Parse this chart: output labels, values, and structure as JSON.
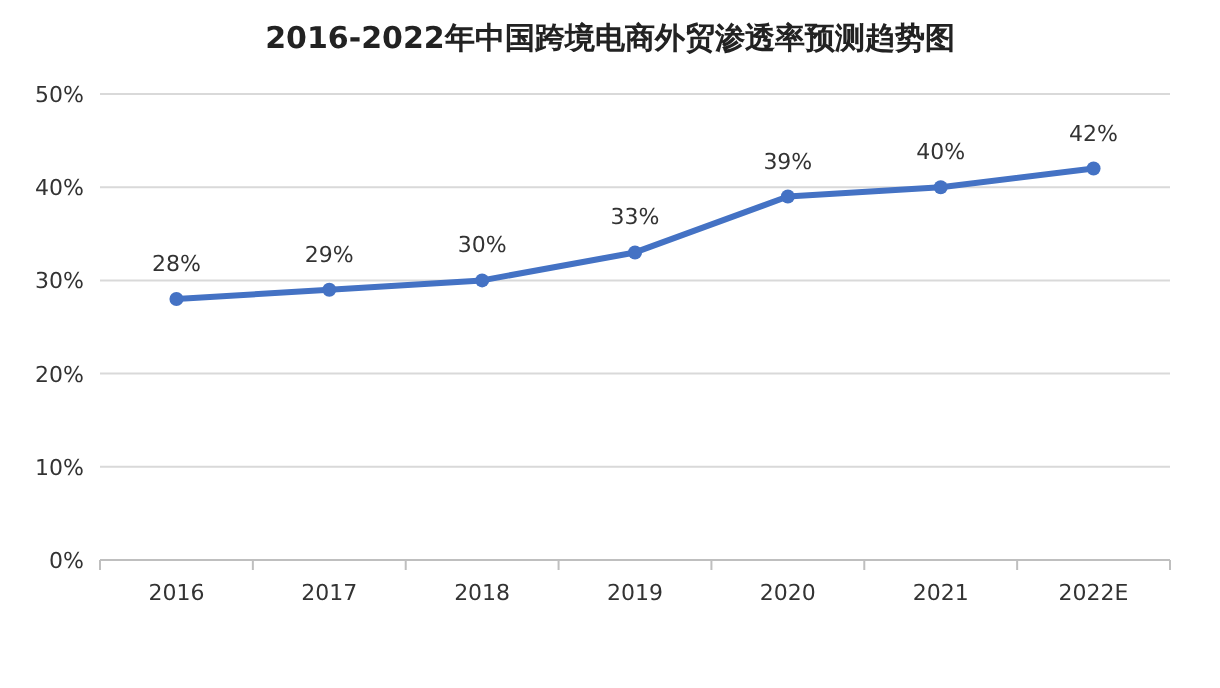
{
  "chart_data": {
    "type": "line",
    "title": "2016-2022年中国跨境电商外贸渗透率预测趋势图",
    "categories": [
      "2016",
      "2017",
      "2018",
      "2019",
      "2020",
      "2021",
      "2022E"
    ],
    "series": [
      {
        "color": "#4472c4",
        "values": [
          28,
          29,
          30,
          33,
          39,
          40,
          42
        ]
      }
    ],
    "value_labels": [
      "28%",
      "29%",
      "30%",
      "33%",
      "39%",
      "40%",
      "42%"
    ],
    "ylim": [
      0,
      50
    ],
    "yticks": [
      {
        "value": 0,
        "label": "0%"
      },
      {
        "value": 10,
        "label": "10%"
      },
      {
        "value": 20,
        "label": "20%"
      },
      {
        "value": 30,
        "label": "30%"
      },
      {
        "value": 40,
        "label": "40%"
      },
      {
        "value": 50,
        "label": "50%"
      }
    ],
    "grid": "y",
    "marker": "circle",
    "line_style": "solid"
  }
}
